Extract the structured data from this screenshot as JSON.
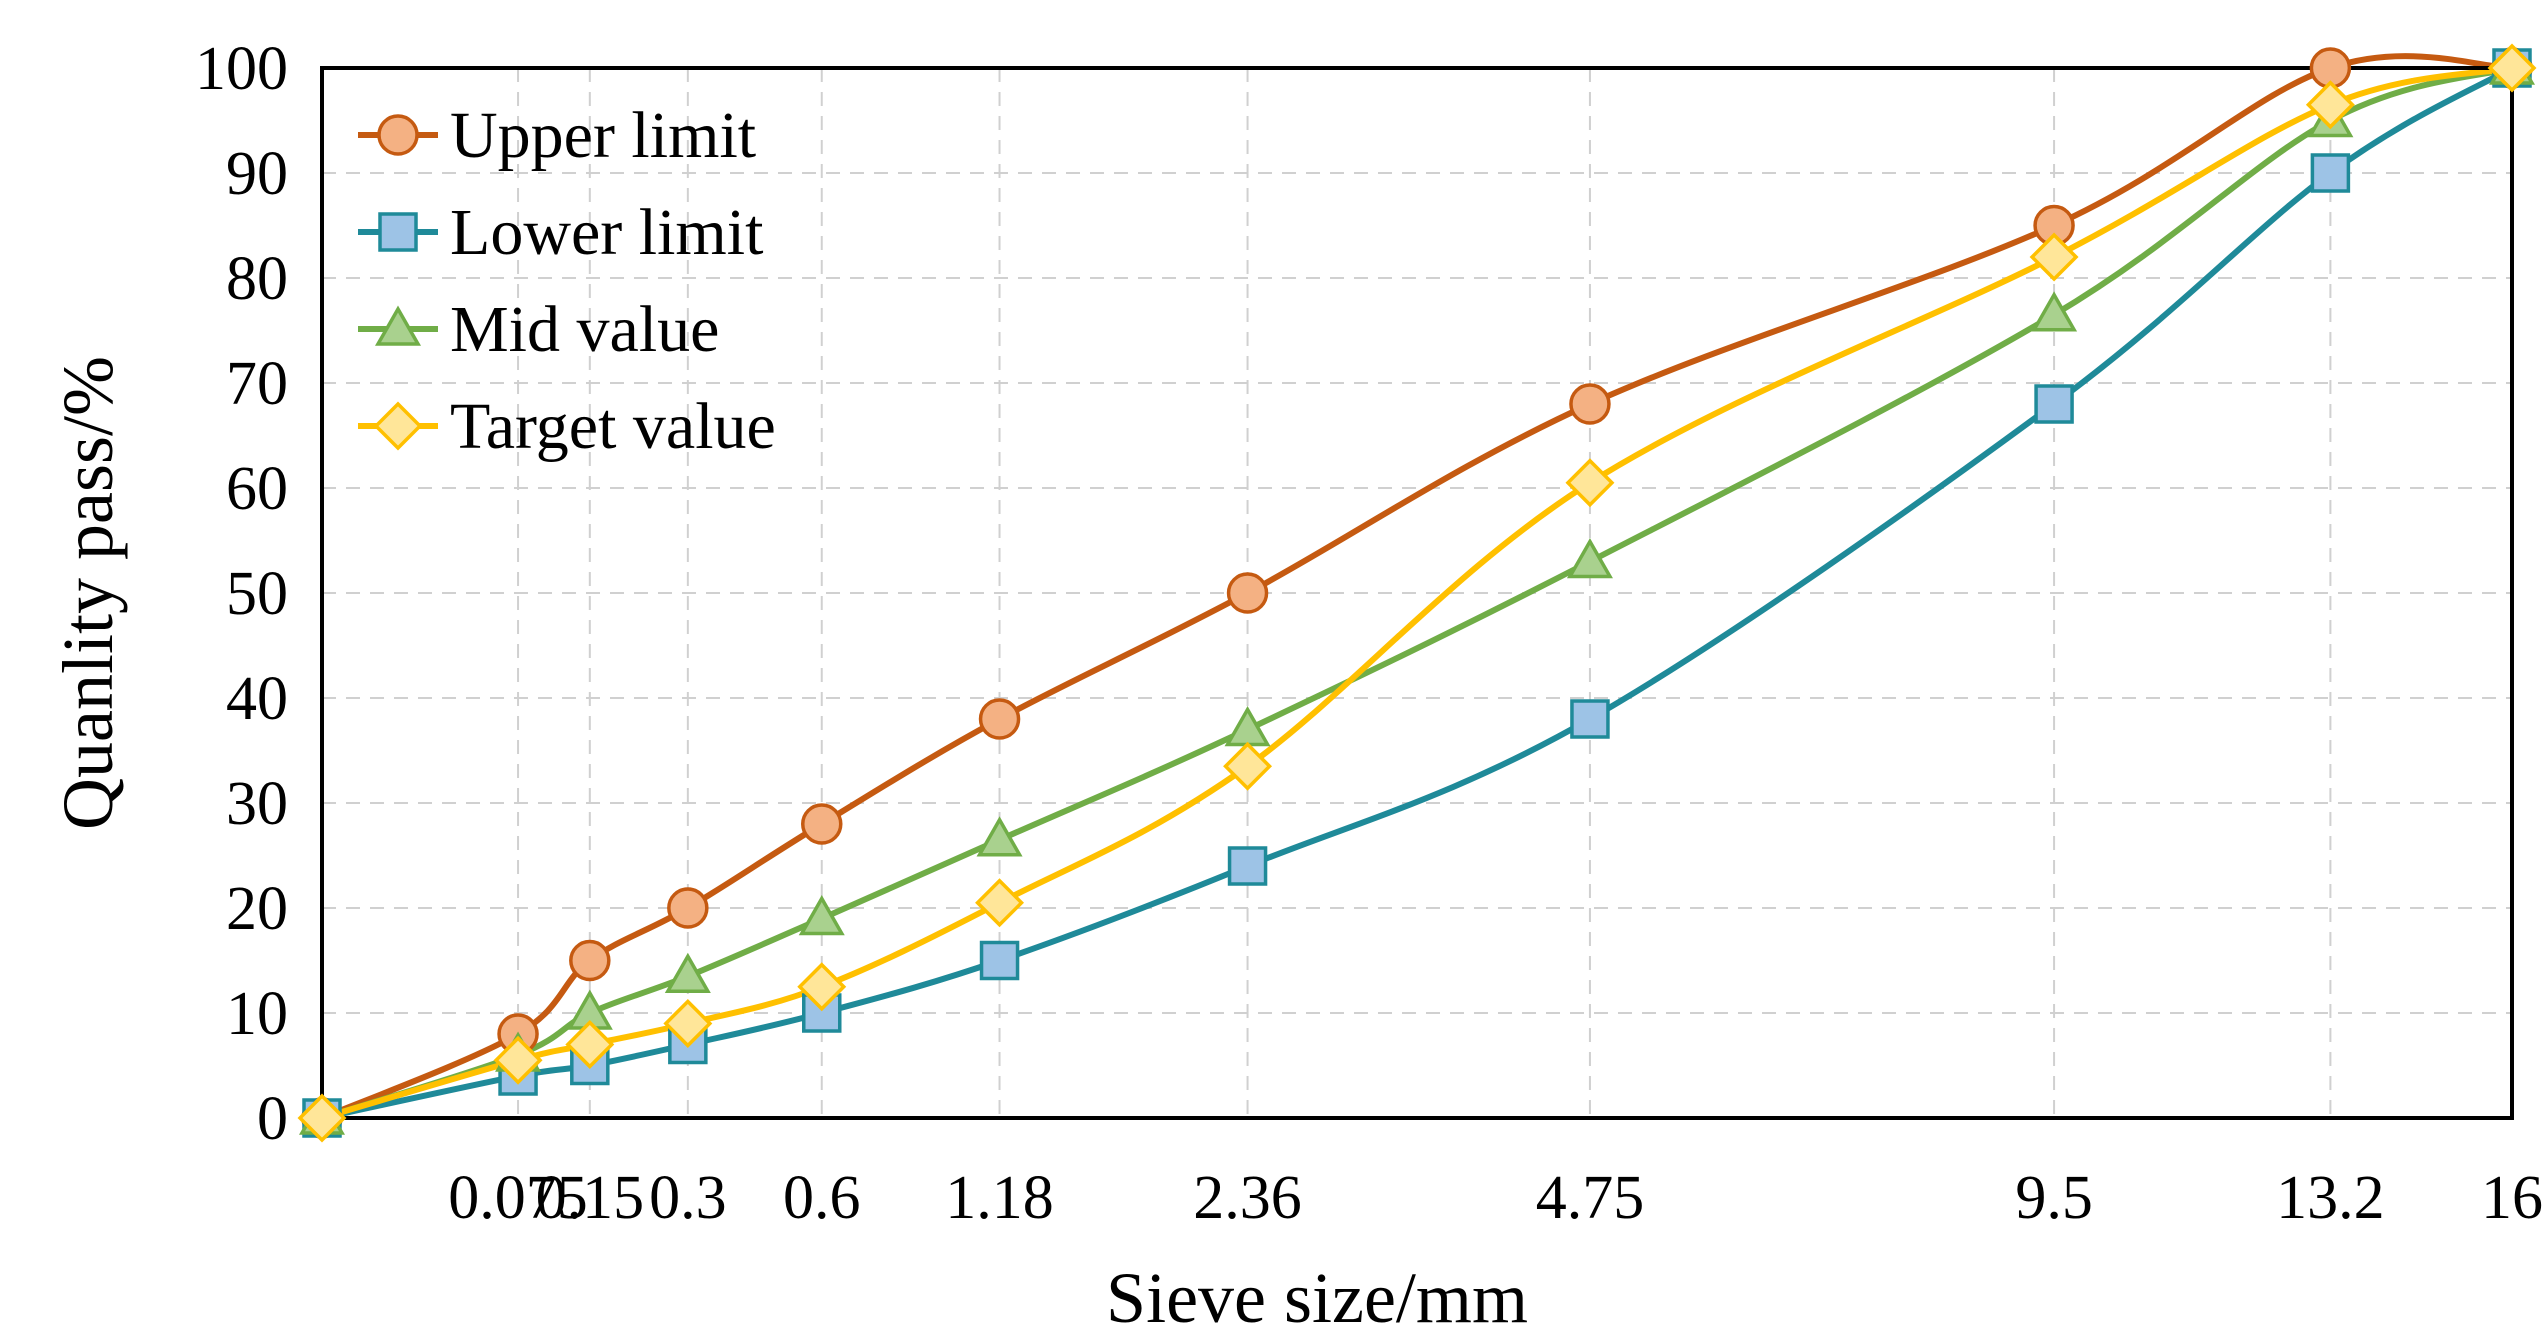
{
  "chart_data": {
    "type": "line",
    "title": "",
    "xlabel": "Sieve size/mm",
    "ylabel": "Quanlity pass/%",
    "x_scale": "power 0.45",
    "xlim": [
      0,
      16
    ],
    "ylim": [
      0,
      100
    ],
    "grid": true,
    "legend_position": "top-left",
    "x": [
      0,
      0.075,
      0.15,
      0.3,
      0.6,
      1.18,
      2.36,
      4.75,
      9.5,
      13.2,
      16
    ],
    "x_tick_values": [
      0.075,
      0.15,
      0.3,
      0.6,
      1.18,
      2.36,
      4.75,
      9.5,
      13.2,
      16
    ],
    "x_tick_labels": [
      "0.075",
      "0.15",
      "0.3",
      "0.6",
      "1.18",
      "2.36",
      "4.75",
      "9.5",
      "13.2",
      "16"
    ],
    "y_ticks": [
      0,
      10,
      20,
      30,
      40,
      50,
      60,
      70,
      80,
      90,
      100
    ],
    "series": [
      {
        "name": "Upper limit",
        "marker": "circle",
        "color": "#C55A11",
        "fill": "#F4B183",
        "values": [
          0,
          8,
          15,
          20,
          28,
          38,
          50,
          68,
          85,
          100,
          100
        ]
      },
      {
        "name": "Lower limit",
        "marker": "square",
        "color": "#1F8A99",
        "fill": "#9DC3E6",
        "values": [
          0,
          4,
          5,
          7,
          10,
          15,
          24,
          38,
          68,
          90,
          100
        ]
      },
      {
        "name": "Mid value",
        "marker": "triangle",
        "color": "#70AD47",
        "fill": "#A9D18E",
        "values": [
          0,
          6,
          10,
          13.5,
          19,
          26.5,
          37,
          53,
          76.5,
          95,
          100
        ]
      },
      {
        "name": "Target value",
        "marker": "diamond",
        "color": "#FFC000",
        "fill": "#FFE699",
        "values": [
          0,
          5.5,
          7,
          9,
          12.5,
          20.5,
          33.5,
          60.5,
          82,
          96.5,
          100
        ]
      }
    ]
  }
}
